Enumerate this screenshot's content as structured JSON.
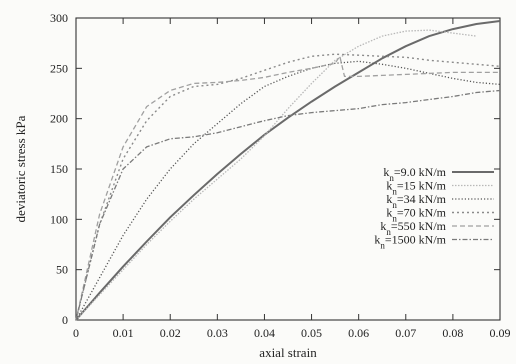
{
  "chart_data": {
    "type": "line",
    "title": "",
    "xlabel": "axial strain",
    "ylabel": "deviatoric stress kPa",
    "xlim": [
      0,
      0.09
    ],
    "ylim": [
      0,
      300
    ],
    "x_ticks": [
      0,
      0.01,
      0.02,
      0.03,
      0.04,
      0.05,
      0.06,
      0.07,
      0.08,
      0.09
    ],
    "x_tick_labels": [
      "0",
      "0.01",
      "0.02",
      "0.03",
      "0.04",
      "0.05",
      "0.06",
      "0.07",
      "0.08",
      "0.09"
    ],
    "y_ticks": [
      0,
      50,
      100,
      150,
      200,
      250,
      300
    ],
    "y_tick_labels": [
      "0",
      "50",
      "100",
      "150",
      "200",
      "250",
      "300"
    ],
    "grid": false,
    "legend_position": "center-right",
    "series": [
      {
        "name": "k_n=9.0 kN/m",
        "label_base": "k",
        "label_sub": "n",
        "label_rest": "=9.0 kN/m",
        "color": "#6a6a6a",
        "style": "solid",
        "x": [
          0,
          0.005,
          0.01,
          0.015,
          0.02,
          0.025,
          0.03,
          0.035,
          0.04,
          0.045,
          0.05,
          0.055,
          0.06,
          0.065,
          0.07,
          0.075,
          0.08,
          0.085,
          0.09
        ],
        "y": [
          0,
          27,
          53,
          78,
          102,
          124,
          145,
          165,
          184,
          201,
          217,
          232,
          246,
          260,
          272,
          282,
          289,
          294,
          297
        ]
      },
      {
        "name": "k_n=15 kN/m",
        "label_base": "k",
        "label_sub": "n",
        "label_rest": "=15 kN/m",
        "color": "#b8b8b8",
        "style": "dense-dot",
        "x": [
          0,
          0.005,
          0.01,
          0.015,
          0.02,
          0.025,
          0.03,
          0.035,
          0.04,
          0.045,
          0.05,
          0.055,
          0.06,
          0.065,
          0.07,
          0.075,
          0.08,
          0.085
        ],
        "y": [
          0,
          25,
          50,
          75,
          98,
          120,
          140,
          160,
          183,
          210,
          235,
          258,
          272,
          282,
          287,
          288,
          285,
          282
        ]
      },
      {
        "name": "k_n=34 kN/m",
        "label_base": "k",
        "label_sub": "n",
        "label_rest": "=34 kN/m",
        "color": "#555555",
        "style": "fine-dot",
        "x": [
          0,
          0.005,
          0.01,
          0.015,
          0.02,
          0.025,
          0.03,
          0.035,
          0.04,
          0.045,
          0.05,
          0.055,
          0.06,
          0.065,
          0.07,
          0.075,
          0.08,
          0.085,
          0.09
        ],
        "y": [
          0,
          42,
          84,
          120,
          150,
          175,
          195,
          215,
          232,
          242,
          250,
          255,
          257,
          254,
          250,
          245,
          240,
          236,
          234
        ]
      },
      {
        "name": "k_n=70 kN/m",
        "label_base": "k",
        "label_sub": "n",
        "label_rest": "=70 kN/m",
        "color": "#8a8a8a",
        "style": "dot",
        "x": [
          0,
          0.005,
          0.01,
          0.015,
          0.02,
          0.025,
          0.03,
          0.035,
          0.04,
          0.045,
          0.05,
          0.055,
          0.06,
          0.065,
          0.07,
          0.075,
          0.08,
          0.085,
          0.09
        ],
        "y": [
          0,
          95,
          160,
          198,
          222,
          232,
          234,
          240,
          248,
          256,
          262,
          264,
          263,
          262,
          261,
          258,
          256,
          254,
          252
        ]
      },
      {
        "name": "k_n=550 kN/m",
        "label_base": "k",
        "label_sub": "n",
        "label_rest": "=550 kN/m",
        "color": "#a0a0a0",
        "style": "dash",
        "x": [
          0,
          0.005,
          0.01,
          0.015,
          0.02,
          0.025,
          0.03,
          0.035,
          0.04,
          0.045,
          0.05,
          0.055,
          0.056,
          0.057,
          0.06,
          0.065,
          0.07,
          0.075,
          0.08,
          0.085,
          0.09
        ],
        "y": [
          0,
          105,
          172,
          212,
          228,
          235,
          236,
          238,
          241,
          246,
          250,
          255,
          262,
          242,
          242,
          243,
          244,
          245,
          246,
          246,
          246
        ]
      },
      {
        "name": "k_n=1500 kN/m",
        "label_base": "k",
        "label_sub": "n",
        "label_rest": "=1500 kN/m",
        "color": "#7a7a7a",
        "style": "dash-dot",
        "x": [
          0,
          0.005,
          0.01,
          0.015,
          0.02,
          0.025,
          0.03,
          0.035,
          0.04,
          0.045,
          0.05,
          0.055,
          0.06,
          0.065,
          0.07,
          0.075,
          0.08,
          0.085,
          0.09
        ],
        "y": [
          0,
          95,
          150,
          172,
          180,
          182,
          186,
          192,
          198,
          203,
          206,
          208,
          210,
          214,
          216,
          219,
          222,
          226,
          228
        ]
      }
    ]
  }
}
